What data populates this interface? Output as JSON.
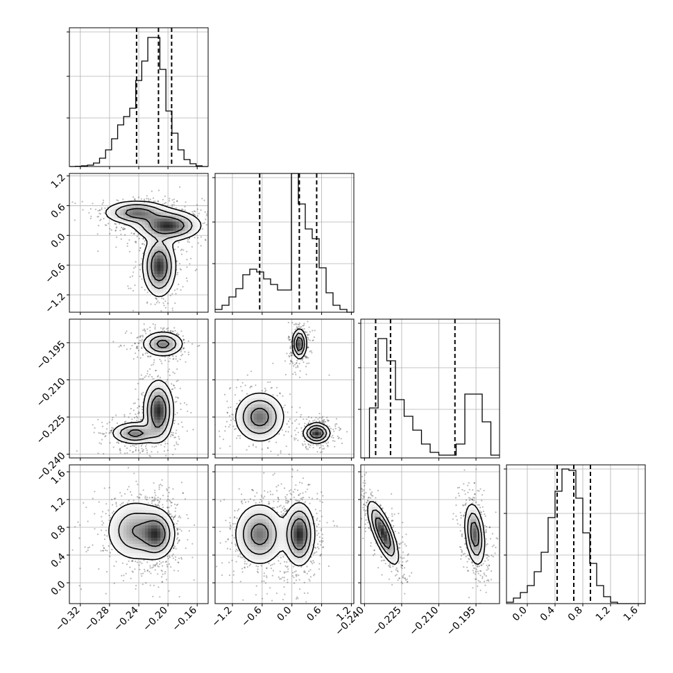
{
  "chart_data": {
    "type": "corner",
    "grid": true,
    "parameters": [
      {
        "range": [
          -0.335,
          -0.145
        ],
        "ticks": [
          -0.32,
          -0.28,
          -0.24,
          -0.2,
          -0.16
        ],
        "tick_labels": [
          "−0.32",
          "−0.28",
          "−0.24",
          "−0.20",
          "−0.16"
        ]
      },
      {
        "range": [
          -1.55,
          1.25
        ],
        "ticks": [
          -1.2,
          -0.6,
          0.0,
          0.6,
          1.2
        ],
        "tick_labels": [
          "−1.2",
          "−0.6",
          "0.0",
          "0.6",
          "1.2"
        ]
      },
      {
        "range": [
          -0.2415,
          -0.1855
        ],
        "ticks": [
          -0.24,
          -0.225,
          -0.21,
          -0.195
        ],
        "tick_labels": [
          "−0.240",
          "−0.225",
          "−0.210",
          "−0.195"
        ]
      },
      {
        "range": [
          -0.3,
          1.7
        ],
        "ticks": [
          0.0,
          0.4,
          0.8,
          1.2,
          1.6
        ],
        "tick_labels": [
          "0.0",
          "0.4",
          "0.8",
          "1.2",
          "1.6"
        ]
      }
    ],
    "histograms": [
      {
        "bins": [
          -0.335,
          -0.145
        ],
        "counts": [
          0.0,
          0.002,
          0.005,
          0.01,
          0.025,
          0.06,
          0.12,
          0.2,
          0.3,
          0.36,
          0.42,
          0.62,
          0.76,
          0.93,
          0.93,
          0.7,
          0.4,
          0.24,
          0.12,
          0.05,
          0.02,
          0.005,
          0.0
        ],
        "quantiles": [
          -0.243,
          -0.213,
          -0.195
        ]
      },
      {
        "bins": [
          -1.55,
          1.25
        ],
        "counts": [
          0.02,
          0.05,
          0.11,
          0.17,
          0.27,
          0.31,
          0.29,
          0.24,
          0.2,
          0.16,
          0.16,
          1.0,
          0.78,
          0.6,
          0.53,
          0.32,
          0.14,
          0.05,
          0.02,
          0.0
        ],
        "quantiles": [
          -0.65,
          0.15,
          0.5
        ]
      },
      {
        "bins": [
          -0.2415,
          -0.1855
        ],
        "counts": [
          0.0,
          0.36,
          0.86,
          0.7,
          0.42,
          0.3,
          0.2,
          0.1,
          0.04,
          0.02,
          0.02,
          0.1,
          0.46,
          0.46,
          0.26,
          0.02
        ],
        "quantiles": [
          -0.2355,
          -0.2295,
          -0.2035
        ]
      },
      {
        "bins": [
          -0.3,
          1.7
        ],
        "counts": [
          0.01,
          0.04,
          0.08,
          0.13,
          0.23,
          0.37,
          0.62,
          0.81,
          0.97,
          0.96,
          0.76,
          0.51,
          0.29,
          0.13,
          0.05,
          0.01,
          0.0,
          0.0,
          0.0,
          0.0
        ],
        "quantiles": [
          0.43,
          0.67,
          0.91
        ]
      }
    ],
    "pairs": [
      {
        "x": 0,
        "y": 1,
        "modes": [
          {
            "mx": -0.243,
            "my": 0.46,
            "sx": 0.022,
            "sy": 0.12,
            "w": 1.0
          },
          {
            "mx": -0.2,
            "my": 0.2,
            "sx": 0.022,
            "sy": 0.15,
            "w": 1.3
          },
          {
            "mx": -0.212,
            "my": -0.62,
            "sx": 0.011,
            "sy": 0.3,
            "w": 1.3
          }
        ]
      },
      {
        "x": 0,
        "y": 2,
        "modes": [
          {
            "mx": -0.207,
            "my": -0.1955,
            "sx": 0.014,
            "sy": 0.0025,
            "w": 1.0
          },
          {
            "mx": -0.245,
            "my": -0.2315,
            "sx": 0.016,
            "sy": 0.0022,
            "w": 1.0
          },
          {
            "mx": -0.213,
            "my": -0.2225,
            "sx": 0.01,
            "sy": 0.006,
            "w": 1.4
          }
        ]
      },
      {
        "x": 1,
        "y": 2,
        "modes": [
          {
            "mx": 0.15,
            "my": -0.1955,
            "sx": 0.07,
            "sy": 0.003,
            "w": 1.2
          },
          {
            "mx": -0.65,
            "my": -0.225,
            "sx": 0.25,
            "sy": 0.005,
            "w": 1.0
          },
          {
            "mx": 0.5,
            "my": -0.2315,
            "sx": 0.13,
            "sy": 0.002,
            "w": 1.3
          }
        ]
      },
      {
        "x": 0,
        "y": 3,
        "modes": [
          {
            "mx": -0.215,
            "my": 0.7,
            "sx": 0.012,
            "sy": 0.17,
            "w": 1.2
          },
          {
            "mx": -0.245,
            "my": 0.75,
            "sx": 0.02,
            "sy": 0.22,
            "w": 0.9
          }
        ]
      },
      {
        "x": 1,
        "y": 3,
        "modes": [
          {
            "mx": 0.15,
            "my": 0.7,
            "sx": 0.15,
            "sy": 0.22,
            "w": 1.2
          },
          {
            "mx": -0.65,
            "my": 0.7,
            "sx": 0.25,
            "sy": 0.22,
            "w": 0.9
          }
        ]
      },
      {
        "x": 2,
        "y": 3,
        "modes": [
          {
            "mx": -0.2325,
            "my": 0.72,
            "sx": 0.003,
            "sy": 0.22,
            "w": 1.2,
            "rho": -0.75
          },
          {
            "mx": -0.1955,
            "my": 0.7,
            "sx": 0.002,
            "sy": 0.22,
            "w": 1.0,
            "rho": -0.3
          }
        ]
      }
    ]
  }
}
